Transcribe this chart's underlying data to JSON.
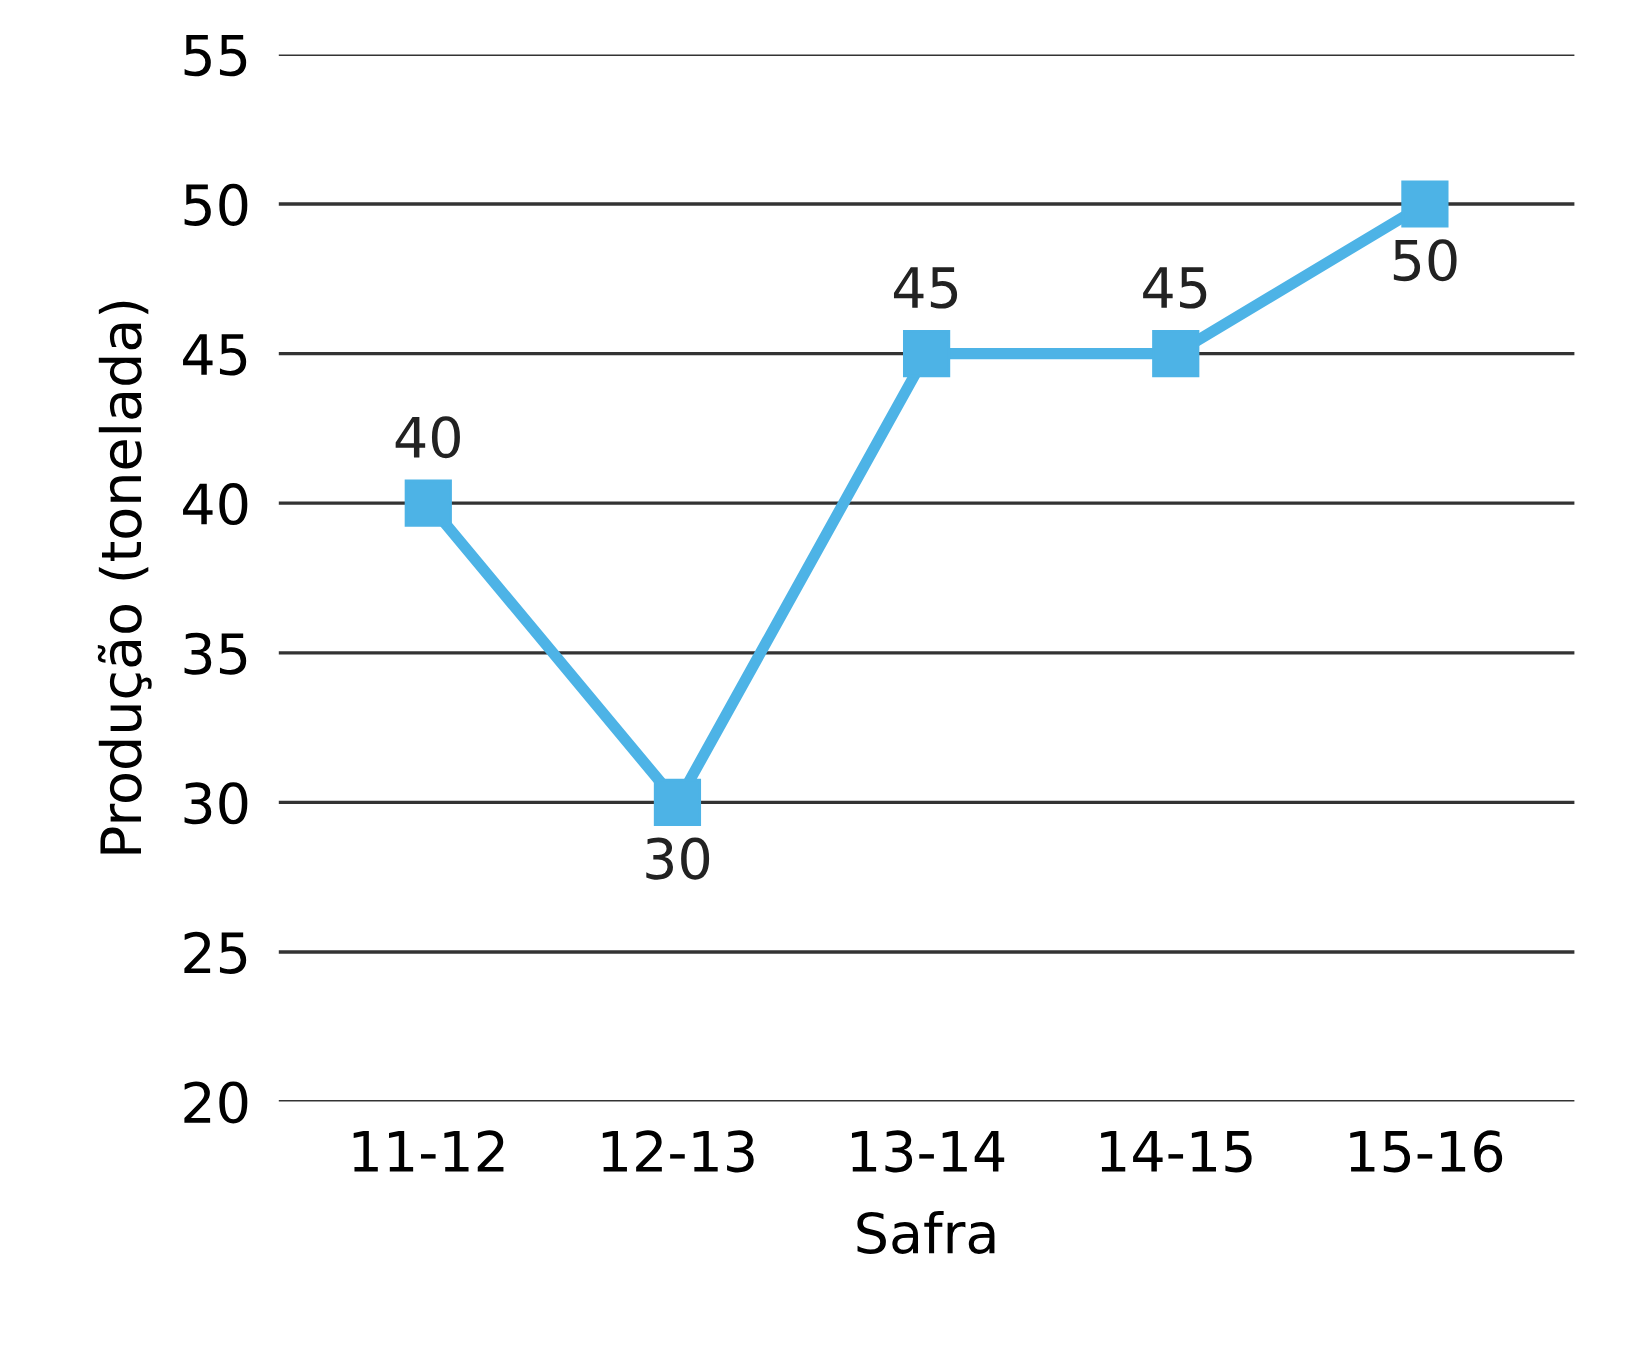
{
  "chart_data": {
    "type": "line",
    "xlabel": "Safra",
    "ylabel": "Produção (tonelada)",
    "categories": [
      "11-12",
      "12-13",
      "13-14",
      "14-15",
      "15-16"
    ],
    "series": [
      {
        "color": "#4db3e6",
        "values": [
          40,
          30,
          45,
          45,
          50
        ]
      }
    ],
    "ylim": [
      20,
      55
    ],
    "yticks": [
      20,
      25,
      30,
      35,
      40,
      45,
      50,
      55
    ],
    "grid": "y",
    "marker": "square",
    "line_style": "solid",
    "data_labels": true
  }
}
